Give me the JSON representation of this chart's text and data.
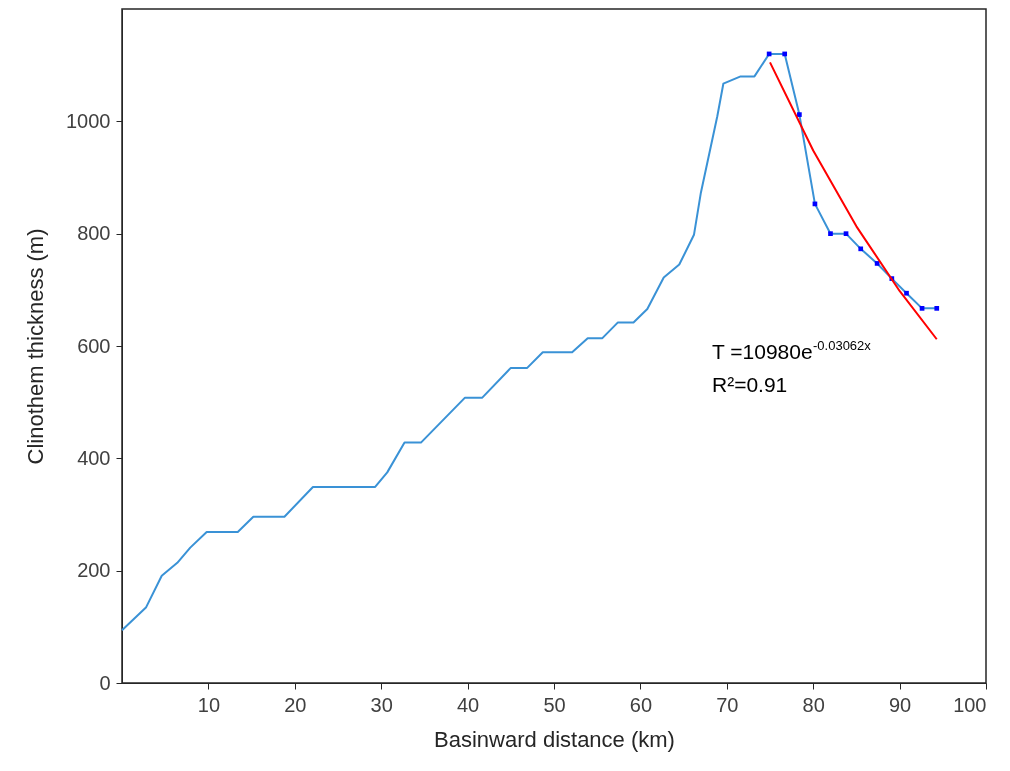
{
  "chart_data": {
    "type": "line",
    "xlabel": "Basinward distance (km)",
    "ylabel": "Clinothem thickness (m)",
    "xlim": [
      0,
      100
    ],
    "xticks": [
      10,
      20,
      30,
      40,
      50,
      60,
      70,
      80,
      90,
      100
    ],
    "ylim": [
      0,
      1200
    ],
    "yticks": [
      0,
      200,
      400,
      600,
      800,
      1000
    ],
    "series": [
      {
        "color": "#3a92d6",
        "x": [
          0,
          2.8,
          4.6,
          6.4,
          7.9,
          9.8,
          13.4,
          15.2,
          18.8,
          22.1,
          29.3,
          30.7,
          32.7,
          34.6,
          39.7,
          41.7,
          45.0,
          46.9,
          48.7,
          52.1,
          53.9,
          55.6,
          57.4,
          59.2,
          60.8,
          62.7,
          64.5,
          66.2,
          67.0,
          68.9,
          69.6,
          71.6,
          73.2,
          74.9,
          76.7,
          78.4,
          80.2,
          82.0,
          83.8,
          85.5,
          87.4,
          89.1,
          90.8,
          92.6,
          94.3
        ],
        "values": [
          94,
          135,
          191,
          214,
          241,
          269,
          269,
          296,
          296,
          349,
          349,
          375,
          428,
          428,
          508,
          508,
          561,
          561,
          589,
          589,
          614,
          614,
          642,
          642,
          666,
          722,
          745,
          798,
          873,
          1009,
          1067,
          1080,
          1080,
          1120,
          1120,
          1012,
          853,
          800,
          800,
          773,
          747,
          720,
          694,
          667,
          667
        ]
      },
      {
        "type": "scatter",
        "marker": "square",
        "color": "#0000ff",
        "x": [
          74.9,
          76.7,
          78.4,
          80.2,
          82.0,
          83.8,
          85.5,
          87.4,
          89.1,
          90.8,
          92.6,
          94.3
        ],
        "values": [
          1120,
          1120,
          1012,
          853,
          800,
          800,
          773,
          747,
          720,
          694,
          667,
          667
        ]
      },
      {
        "color": "#ff0000",
        "x": [
          75,
          80,
          85,
          90,
          94.3
        ],
        "values": [
          1105,
          948,
          813,
          698,
          612
        ]
      }
    ],
    "annotations": [
      "T =10980e$^{-0.03062x}$",
      "R²=0.91"
    ]
  }
}
